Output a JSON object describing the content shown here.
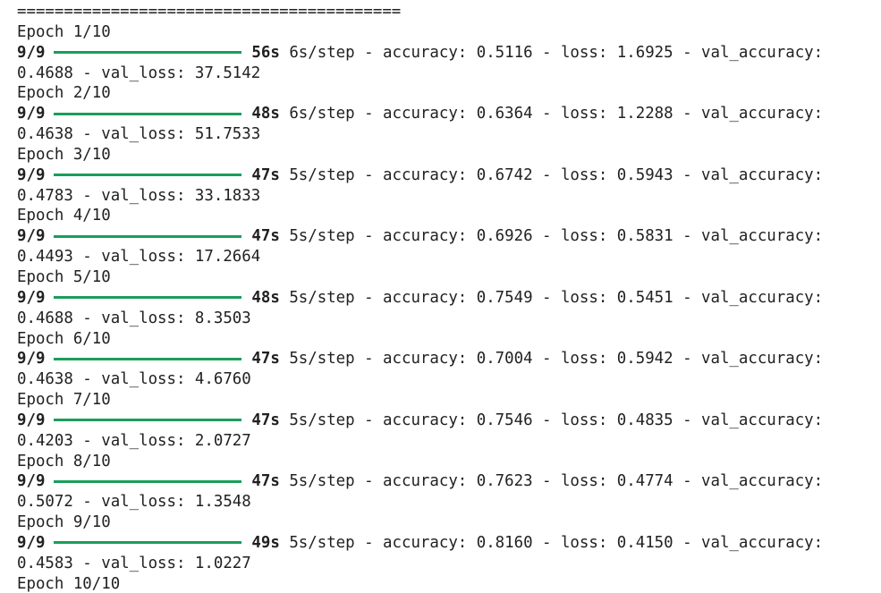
{
  "log": {
    "separator": "=========================================",
    "epochs": [
      {
        "header": "Epoch 1/10",
        "steps": "9/9",
        "time": "56s",
        "line1": "6s/step - accuracy: 0.5116 - loss: 1.6925 - val_accuracy:",
        "line2": "0.4688 - val_loss: 37.5142"
      },
      {
        "header": "Epoch 2/10",
        "steps": "9/9",
        "time": "48s",
        "line1": "6s/step - accuracy: 0.6364 - loss: 1.2288 - val_accuracy:",
        "line2": "0.4638 - val_loss: 51.7533"
      },
      {
        "header": "Epoch 3/10",
        "steps": "9/9",
        "time": "47s",
        "line1": "5s/step - accuracy: 0.6742 - loss: 0.5943 - val_accuracy:",
        "line2": "0.4783 - val_loss: 33.1833"
      },
      {
        "header": "Epoch 4/10",
        "steps": "9/9",
        "time": "47s",
        "line1": "5s/step - accuracy: 0.6926 - loss: 0.5831 - val_accuracy:",
        "line2": "0.4493 - val_loss: 17.2664"
      },
      {
        "header": "Epoch 5/10",
        "steps": "9/9",
        "time": "48s",
        "line1": "5s/step - accuracy: 0.7549 - loss: 0.5451 - val_accuracy:",
        "line2": "0.4688 - val_loss: 8.3503"
      },
      {
        "header": "Epoch 6/10",
        "steps": "9/9",
        "time": "47s",
        "line1": "5s/step - accuracy: 0.7004 - loss: 0.5942 - val_accuracy:",
        "line2": "0.4638 - val_loss: 4.6760"
      },
      {
        "header": "Epoch 7/10",
        "steps": "9/9",
        "time": "47s",
        "line1": "5s/step - accuracy: 0.7546 - loss: 0.4835 - val_accuracy:",
        "line2": "0.4203 - val_loss: 2.0727"
      },
      {
        "header": "Epoch 8/10",
        "steps": "9/9",
        "time": "47s",
        "line1": "5s/step - accuracy: 0.7623 - loss: 0.4774 - val_accuracy:",
        "line2": "0.5072 - val_loss: 1.3548"
      },
      {
        "header": "Epoch 9/10",
        "steps": "9/9",
        "time": "49s",
        "line1": "5s/step - accuracy: 0.8160 - loss: 0.4150 - val_accuracy:",
        "line2": "0.4583 - val_loss: 1.0227"
      }
    ],
    "last_header": "Epoch 10/10"
  }
}
